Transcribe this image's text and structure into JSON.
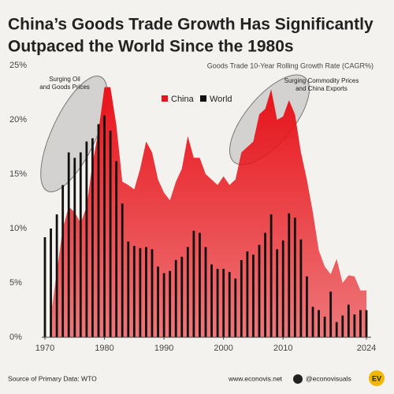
{
  "chart_data": {
    "type": "bar-area",
    "title": [
      "China’s Goods Trade Growth Has Significantly",
      "Outpaced the World Since the 1980s"
    ],
    "y_label": "Goods Trade 10-Year Rolling Growth Rate (CAGR%)",
    "annotations": [
      [
        "Surging Oil",
        "and Goods Prices"
      ],
      [
        "Surging Commodity Prices",
        "and China Exports"
      ]
    ],
    "x": [
      1970,
      1971,
      1972,
      1973,
      1974,
      1975,
      1976,
      1977,
      1978,
      1979,
      1980,
      1981,
      1982,
      1983,
      1984,
      1985,
      1986,
      1987,
      1988,
      1989,
      1990,
      1991,
      1992,
      1993,
      1994,
      1995,
      1996,
      1997,
      1998,
      1999,
      2000,
      2001,
      2002,
      2003,
      2004,
      2005,
      2006,
      2007,
      2008,
      2009,
      2010,
      2011,
      2012,
      2013,
      2014,
      2015,
      2016,
      2017,
      2018,
      2019,
      2020,
      2021,
      2022,
      2023,
      2024
    ],
    "series": [
      {
        "name": "China",
        "color": "#e8141b",
        "values": [
          null,
          2,
          6,
          10,
          12,
          11.5,
          10.5,
          12,
          16,
          19,
          23,
          23,
          19.5,
          14.3,
          14,
          13.6,
          15.5,
          18,
          17,
          14.5,
          13.3,
          12.6,
          14.3,
          15.5,
          18.5,
          16.5,
          16.5,
          15,
          14.5,
          14,
          14.8,
          14,
          14.5,
          17,
          17.5,
          18,
          20.5,
          21,
          22.8,
          20,
          20.3,
          21.8,
          20.5,
          17,
          14.5,
          11.5,
          8,
          6.5,
          5.8,
          7.2,
          5,
          5.7,
          5.6,
          4.3,
          4.3
        ]
      },
      {
        "name": "World",
        "color": "#111111",
        "values": [
          9.2,
          10,
          11.3,
          14,
          17,
          16.5,
          17,
          18,
          18.3,
          19.6,
          20.4,
          19,
          16.2,
          12.3,
          8.8,
          8.4,
          8.2,
          8.3,
          8.1,
          6.5,
          5.9,
          6.1,
          7.1,
          7.4,
          8.3,
          9.8,
          9.6,
          8.3,
          6.7,
          6.3,
          6.3,
          6,
          5.4,
          7.1,
          7.9,
          7.6,
          8.5,
          9.6,
          11.3,
          8.1,
          8.9,
          11.4,
          11,
          9,
          5.6,
          2.8,
          2.5,
          1.9,
          4.2,
          1.4,
          2,
          3,
          2.1,
          2.5,
          2.5
        ]
      }
    ],
    "xlim": [
      1970,
      2024
    ],
    "xticks": [
      1970,
      1980,
      1990,
      2000,
      2010,
      2024
    ],
    "ylim": [
      0,
      25
    ],
    "yticks": [
      {
        "value": 0,
        "label": "0%"
      },
      {
        "value": 5,
        "label": "5%"
      },
      {
        "value": 10,
        "label": "10%"
      },
      {
        "value": 15,
        "label": "15%"
      },
      {
        "value": 20,
        "label": "20%"
      },
      {
        "value": 25,
        "label": "25%"
      }
    ],
    "grid": false,
    "footer": {
      "source": "Source of Primary Data: WTO",
      "website": "www.econovis.net",
      "handle": "@econovisuals",
      "logo": "EV"
    }
  }
}
